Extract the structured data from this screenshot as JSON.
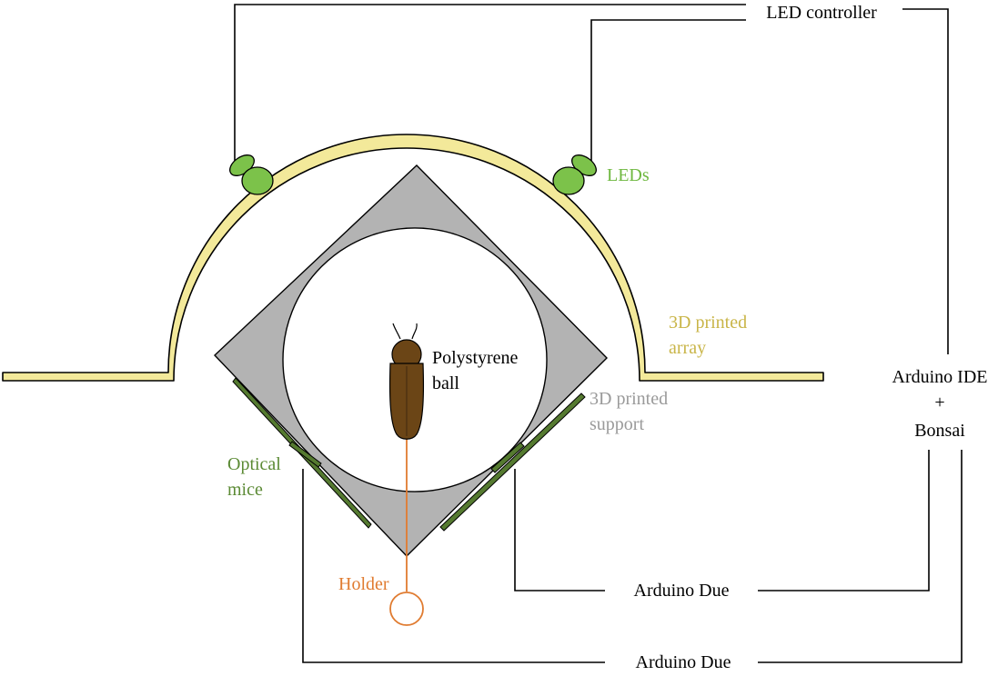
{
  "labels": {
    "led_controller": "LED controller",
    "leds": "LEDs",
    "array_line1": "3D printed",
    "array_line2": "array",
    "support_line1": "3D printed",
    "support_line2": "support",
    "ball_line1": "Polystyrene",
    "ball_line2": "ball",
    "mice_line1": "Optical",
    "mice_line2": "mice",
    "holder": "Holder",
    "ide_line1": "Arduino IDE",
    "ide_line2": "+",
    "ide_line3": "Bonsai",
    "due_1": "Arduino Due",
    "due_2": "Arduino Due"
  },
  "colors": {
    "array": "#f3e99a",
    "array_text": "#c9b548",
    "led": "#7cc24a",
    "led_text": "#6fb840",
    "mice": "#557a30",
    "mice_text": "#5b8a34",
    "support": "#b3b3b3",
    "support_text": "#9a9a9a",
    "holder": "#e07b30",
    "beetle": "#6b4516",
    "line": "#000000"
  }
}
